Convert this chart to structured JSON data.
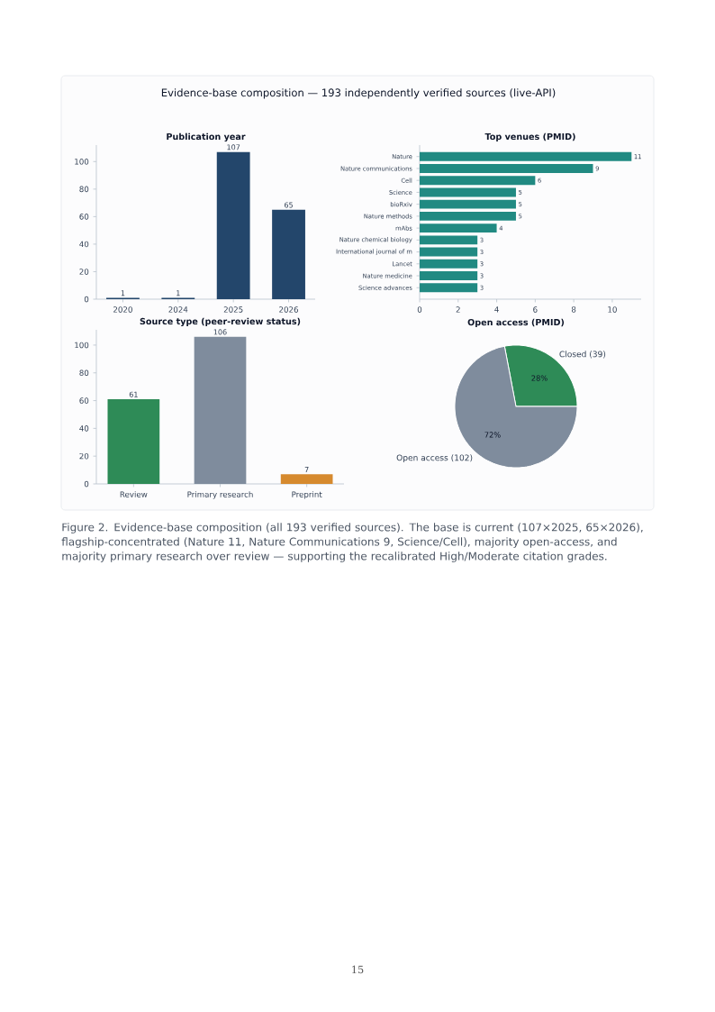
{
  "chart_data": [
    {
      "type": "bar",
      "title": "Publication year",
      "categories": [
        "2020",
        "2024",
        "2025",
        "2026"
      ],
      "values": [
        1,
        1,
        107,
        65
      ],
      "color": "#23466b",
      "ylim": [
        0,
        112
      ],
      "yticks": [
        0,
        20,
        40,
        60,
        80,
        100
      ],
      "data_labels": true,
      "annotations": [
        "Evidence-base composition — 193 independently verified sources (live-API)",
        "Figure 2. Evidence-base composition (all 193 verified sources). The base is current (107×2025, 65×2026), flagship-concentrated (Nature 11, Nature Communications 9, Science/Cell), majority open-access, and majority primary research over review — supporting the recalibrated High/Moderate citation grades.",
        "15"
      ]
    },
    {
      "type": "bar",
      "orientation": "horizontal",
      "title": "Top venues (PMID)",
      "categories": [
        "Nature",
        "Nature communications",
        "Cell",
        "Science",
        "bioRxiv",
        "Nature methods",
        "mAbs",
        "Nature chemical biology",
        "International journal of m",
        "Lancet",
        "Nature medicine",
        "Science advances"
      ],
      "values": [
        11,
        9,
        6,
        5,
        5,
        5,
        4,
        3,
        3,
        3,
        3,
        3
      ],
      "color": "#218a82",
      "xlim": [
        0,
        11.5
      ],
      "xticks": [
        0,
        2,
        4,
        6,
        8,
        10
      ],
      "data_labels": true
    },
    {
      "type": "bar",
      "title": "Source type (peer-review status)",
      "categories": [
        "Review",
        "Primary research",
        "Preprint"
      ],
      "values": [
        61,
        106,
        7
      ],
      "colors": [
        "#2e8b57",
        "#7f8c9d",
        "#d68a2e"
      ],
      "ylim": [
        0,
        111
      ],
      "yticks": [
        0,
        20,
        40,
        60,
        80,
        100
      ],
      "data_labels": true
    },
    {
      "type": "pie",
      "title": "Open access (PMID)",
      "categories": [
        "Closed (39)",
        "Open access (102)"
      ],
      "values": [
        28,
        72
      ],
      "colors": [
        "#2e8b57",
        "#7f8c9d"
      ],
      "value_labels": [
        "28%",
        "72%"
      ]
    }
  ]
}
